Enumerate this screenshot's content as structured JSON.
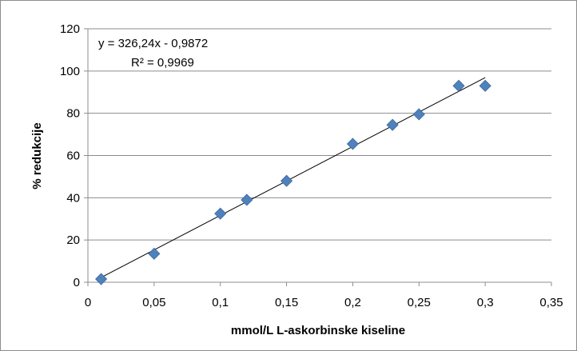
{
  "chart_data": {
    "type": "scatter",
    "xlabel": "mmol/L  L-askorbinske kiseline",
    "ylabel": "% redukcije",
    "xlim": [
      0,
      0.35
    ],
    "ylim": [
      0,
      120
    ],
    "x_ticks": [
      "0",
      "0,05",
      "0,1",
      "0,15",
      "0,2",
      "0,25",
      "0,3",
      "0,35"
    ],
    "y_ticks": [
      "0",
      "20",
      "40",
      "60",
      "80",
      "100",
      "120"
    ],
    "grid": "horizontal",
    "series": [
      {
        "color": "#4f81bd",
        "marker": "diamond",
        "x": [
          0.01,
          0.05,
          0.1,
          0.12,
          0.15,
          0.2,
          0.23,
          0.25,
          0.28,
          0.3
        ],
        "y": [
          1.5,
          13.5,
          32.5,
          39,
          48,
          65.5,
          74.5,
          79.5,
          93,
          93
        ]
      }
    ],
    "trendline": {
      "type": "linear",
      "slope": 326.24,
      "intercept": -0.9872,
      "x_range": [
        0.01,
        0.3
      ],
      "color": "#000000"
    },
    "annotations": {
      "equation": "y = 326,24x - 0,9872",
      "r_squared": "R² = 0,9969"
    }
  }
}
